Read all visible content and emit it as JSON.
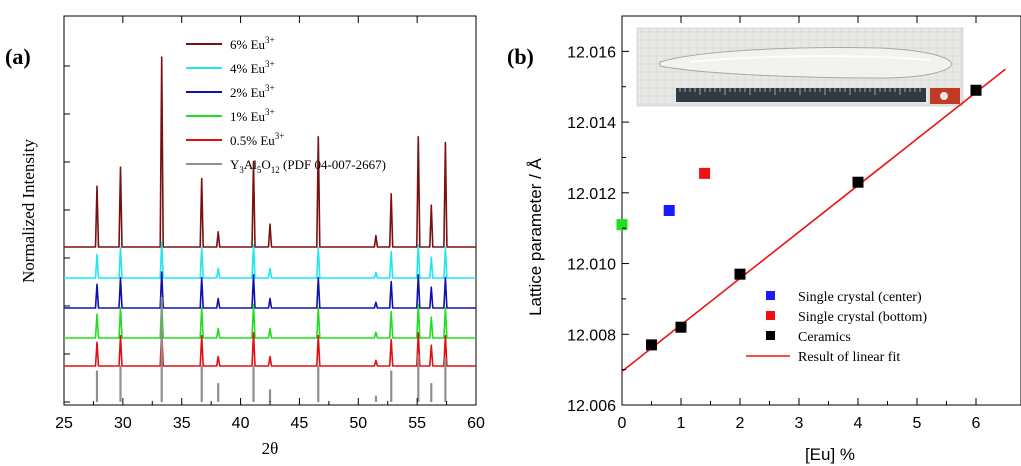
{
  "chart_data": [
    {
      "type": "line",
      "panel_label": "(a)",
      "xlabel": "2θ",
      "ylabel": "Normalized Intensity",
      "xlim": [
        25,
        60
      ],
      "x_ticks": [
        25,
        30,
        35,
        40,
        45,
        50,
        55,
        60
      ],
      "y_tick_labels": "none",
      "grid": false,
      "legend_position": "top-right",
      "peaks_2theta": [
        27.8,
        29.8,
        33.3,
        36.7,
        38.1,
        41.1,
        42.5,
        46.6,
        51.5,
        52.8,
        55.1,
        56.2,
        57.4
      ],
      "series": [
        {
          "name": "6% Eu3+",
          "legend_main": "6% Eu",
          "legend_sup": "3+",
          "color": "#7b1010",
          "offset": 4,
          "intensities": [
            0.32,
            0.42,
            1.0,
            0.36,
            0.08,
            0.45,
            0.12,
            0.58,
            0.06,
            0.28,
            0.58,
            0.22,
            0.55
          ]
        },
        {
          "name": "4% Eu3+",
          "legend_main": "4% Eu",
          "legend_sup": "3+",
          "color": "#22e6ee",
          "offset": 3,
          "intensities": [
            0.25,
            0.32,
            0.38,
            0.32,
            0.1,
            0.35,
            0.1,
            0.32,
            0.06,
            0.28,
            0.35,
            0.22,
            0.32
          ]
        },
        {
          "name": "2% Eu3+",
          "legend_main": "2% Eu",
          "legend_sup": "3+",
          "color": "#1010b0",
          "offset": 2,
          "intensities": [
            0.25,
            0.32,
            0.38,
            0.32,
            0.1,
            0.35,
            0.1,
            0.32,
            0.06,
            0.28,
            0.35,
            0.22,
            0.32
          ]
        },
        {
          "name": "1% Eu3+",
          "legend_main": "1% Eu",
          "legend_sup": "3+",
          "color": "#22dd22",
          "offset": 1,
          "intensities": [
            0.25,
            0.32,
            0.38,
            0.32,
            0.1,
            0.35,
            0.1,
            0.32,
            0.06,
            0.28,
            0.35,
            0.22,
            0.32
          ]
        },
        {
          "name": "0.5% Eu3+",
          "legend_main": "0.5% Eu",
          "legend_sup": "3+",
          "color": "#e01010",
          "offset": 0,
          "intensities": [
            0.25,
            0.32,
            0.38,
            0.32,
            0.1,
            0.35,
            0.1,
            0.32,
            0.06,
            0.28,
            0.35,
            0.22,
            0.32
          ]
        }
      ],
      "reference": {
        "name": "Y3Al5O12 (PDF 04-007-2667)",
        "legend_parts": [
          "Y",
          "3",
          "Al",
          "5",
          "O",
          "12",
          " (PDF 04-007-2667)"
        ],
        "color": "#909090",
        "x": [
          27.8,
          29.8,
          33.3,
          36.7,
          38.1,
          41.1,
          42.5,
          46.6,
          51.5,
          52.8,
          55.1,
          56.2,
          57.4
        ],
        "intensities": [
          0.3,
          0.35,
          1.0,
          0.35,
          0.18,
          0.35,
          0.12,
          0.35,
          0.06,
          0.3,
          0.45,
          0.18,
          0.42
        ]
      }
    },
    {
      "type": "scatter",
      "panel_label": "(b)",
      "xlabel": "[Eu] %",
      "ylabel": "Lattice parameter / Å",
      "xlim": [
        0,
        6.5
      ],
      "ylim": [
        12.006,
        12.017
      ],
      "x_ticks": [
        0,
        1,
        2,
        3,
        4,
        5,
        6
      ],
      "y_ticks": [
        12.006,
        12.008,
        12.01,
        12.012,
        12.014,
        12.016
      ],
      "y_tick_labels": [
        "12.006",
        "12.008",
        "12.010",
        "12.012",
        "12.014",
        "12.016"
      ],
      "grid": false,
      "legend_position": "bottom-right",
      "inset": "photograph of a Eu:YAG single crystal rod next to a ruler",
      "series": [
        {
          "name": "Single crystal (center)",
          "color": "#1a1aff",
          "points": [
            [
              0.8,
              12.0115
            ]
          ]
        },
        {
          "name": "Single crystal (bottom)",
          "color": "#ee1111",
          "points": [
            [
              1.4,
              12.01255
            ]
          ]
        },
        {
          "name": "Ceramics",
          "color": "#000000",
          "points": [
            [
              0.5,
              12.0077
            ],
            [
              1.0,
              12.0082
            ],
            [
              2.0,
              12.0097
            ],
            [
              4.0,
              12.0123
            ],
            [
              6.0,
              12.0149
            ]
          ]
        },
        {
          "name": "",
          "color": "#22dd22",
          "points": [
            [
              0.0,
              12.0111
            ]
          ]
        }
      ],
      "fit": {
        "name": "Result of linear fit",
        "color": "#ee1111",
        "intercept": 12.00695,
        "slope": 0.001315
      }
    }
  ]
}
